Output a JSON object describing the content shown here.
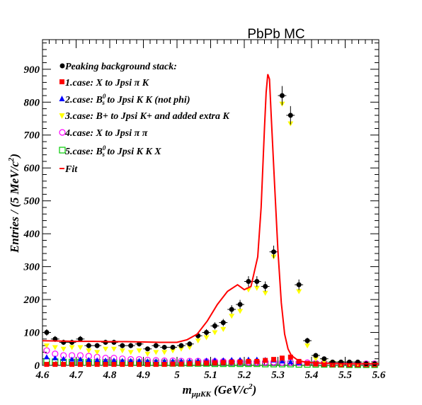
{
  "chart_data": {
    "type": "scatter",
    "title": "PbPb MC",
    "xlabel": "m_μμKK (GeV/c²)",
    "ylabel": "Entries / (5 MeV/c²)",
    "xlim": [
      4.6,
      5.6
    ],
    "ylim": [
      0,
      990
    ],
    "x_ticks": [
      "4.6",
      "4.7",
      "4.8",
      "4.9",
      "5",
      "5.1",
      "5.2",
      "5.3",
      "5.4",
      "5.5",
      "5.6"
    ],
    "y_ticks": [
      "0",
      "100",
      "200",
      "300",
      "400",
      "500",
      "600",
      "700",
      "800",
      "900"
    ],
    "x_tick_values": [
      4.6,
      4.7,
      4.8,
      4.9,
      5.0,
      5.1,
      5.2,
      5.3,
      5.4,
      5.5,
      5.6
    ],
    "y_tick_values": [
      0,
      100,
      200,
      300,
      400,
      500,
      600,
      700,
      800,
      900
    ],
    "grid": false,
    "legend_position": "top-left",
    "series": [
      {
        "name": "Peaking background stack:",
        "marker": "filled-circle",
        "color": "#000000",
        "x": [
          4.6125,
          4.6375,
          4.6625,
          4.6875,
          4.7125,
          4.7375,
          4.7625,
          4.7875,
          4.8125,
          4.8375,
          4.8625,
          4.8875,
          4.9125,
          4.9375,
          4.9625,
          4.9875,
          5.0125,
          5.0375,
          5.0625,
          5.0875,
          5.1125,
          5.1375,
          5.1625,
          5.1875,
          5.2125,
          5.2375,
          5.2625,
          5.2875,
          5.3125,
          5.3375,
          5.3625,
          5.3875,
          5.4125,
          5.4375,
          5.4625,
          5.4875,
          5.5125,
          5.5375,
          5.5625,
          5.5875
        ],
        "y": [
          100,
          80,
          70,
          70,
          80,
          60,
          60,
          70,
          70,
          60,
          60,
          65,
          50,
          60,
          55,
          55,
          60,
          65,
          90,
          100,
          120,
          130,
          170,
          185,
          255,
          255,
          240,
          345,
          820,
          760,
          245,
          75,
          30,
          20,
          10,
          10,
          10,
          10,
          5,
          5
        ],
        "err": [
          10,
          9,
          8,
          8,
          9,
          8,
          8,
          8,
          8,
          8,
          8,
          8,
          7,
          8,
          7,
          7,
          8,
          8,
          9,
          10,
          11,
          11,
          13,
          14,
          16,
          16,
          15,
          19,
          29,
          28,
          16,
          9,
          5,
          4,
          3,
          3,
          3,
          3,
          2,
          2
        ]
      },
      {
        "name": "1.case: X to Jpsi  π K",
        "marker": "filled-square",
        "color": "#ff0000",
        "x": [
          4.6125,
          4.6375,
          4.6625,
          4.6875,
          4.7125,
          4.7375,
          4.7625,
          4.7875,
          4.8125,
          4.8375,
          4.8625,
          4.8875,
          4.9125,
          4.9375,
          4.9625,
          4.9875,
          5.0125,
          5.0375,
          5.0625,
          5.0875,
          5.1125,
          5.1375,
          5.1625,
          5.1875,
          5.2125,
          5.2375,
          5.2625,
          5.2875,
          5.3125,
          5.3375,
          5.3625,
          5.3875,
          5.4125,
          5.4375,
          5.4625,
          5.4875,
          5.5125,
          5.5375,
          5.5625,
          5.5875
        ],
        "y": [
          3,
          3,
          3,
          3,
          3,
          3,
          3,
          3,
          3,
          3,
          3,
          3,
          3,
          3,
          3,
          4,
          4,
          5,
          6,
          7,
          8,
          9,
          10,
          10,
          12,
          12,
          15,
          18,
          22,
          25,
          12,
          6,
          4,
          3,
          2,
          2,
          2,
          2,
          2,
          2
        ]
      },
      {
        "name": "2.case: B_s^0 to Jpsi K K (not phi)",
        "marker": "filled-triangle-up",
        "color": "#0000ff",
        "x": [
          4.6125,
          4.6375,
          4.6625,
          4.6875,
          4.7125,
          4.7375,
          4.7625,
          4.7875,
          4.8125,
          4.8375,
          4.8625,
          4.8875,
          4.9125,
          4.9375,
          4.9625,
          4.9875,
          5.0125,
          5.0375,
          5.0625,
          5.0875,
          5.1125,
          5.1375,
          5.1625,
          5.1875,
          5.2125,
          5.2375,
          5.2625,
          5.2875,
          5.3125,
          5.3375,
          5.3625,
          5.3875,
          5.4125,
          5.4375,
          5.4625,
          5.4875,
          5.5125,
          5.5375,
          5.5625,
          5.5875
        ],
        "y": [
          25,
          22,
          20,
          18,
          18,
          17,
          16,
          15,
          15,
          14,
          14,
          14,
          13,
          13,
          13,
          13,
          13,
          13,
          14,
          15,
          16,
          16,
          17,
          17,
          18,
          18,
          17,
          15,
          12,
          10,
          8,
          6,
          5,
          4,
          4,
          3,
          3,
          3,
          3,
          3
        ]
      },
      {
        "name": "3.case: B+ to Jpsi K+ and added extra K",
        "marker": "filled-triangle-down",
        "color": "#ffff00",
        "x": [
          4.6125,
          4.6375,
          4.6625,
          4.6875,
          4.7125,
          4.7375,
          4.7625,
          4.7875,
          4.8125,
          4.8375,
          4.8625,
          4.8875,
          4.9125,
          4.9375,
          4.9625,
          4.9875,
          5.0125,
          5.0375,
          5.0625,
          5.0875,
          5.1125,
          5.1375,
          5.1625,
          5.1875,
          5.2125,
          5.2375,
          5.2625,
          5.2875,
          5.3125,
          5.3375,
          5.3625,
          5.3875,
          5.4125,
          5.4375,
          5.4625,
          5.4875,
          5.5125,
          5.5375,
          5.5625,
          5.5875
        ],
        "y": [
          60,
          55,
          50,
          55,
          55,
          45,
          40,
          50,
          50,
          45,
          40,
          45,
          35,
          40,
          40,
          45,
          50,
          55,
          75,
          85,
          100,
          110,
          150,
          165,
          230,
          235,
          220,
          330,
          795,
          735,
          225,
          60,
          20,
          12,
          8,
          6,
          6,
          5,
          4,
          4
        ]
      },
      {
        "name": "4.case: X to Jpsi  π  π",
        "marker": "open-circle",
        "color": "#ff00ff",
        "x": [
          4.6125,
          4.6375,
          4.6625,
          4.6875,
          4.7125,
          4.7375,
          4.7625,
          4.7875,
          4.8125,
          4.8375,
          4.8625,
          4.8875,
          4.9125,
          4.9375,
          4.9625,
          4.9875,
          5.0125,
          5.0375,
          5.0625,
          5.0875,
          5.1125,
          5.1375,
          5.1625,
          5.1875,
          5.2125,
          5.2375,
          5.2625,
          5.2875,
          5.3125,
          5.3375,
          5.3625,
          5.3875,
          5.4125,
          5.4375,
          5.4625,
          5.4875,
          5.5125,
          5.5375,
          5.5625,
          5.5875
        ],
        "y": [
          45,
          35,
          30,
          30,
          30,
          28,
          25,
          22,
          22,
          20,
          18,
          18,
          16,
          15,
          14,
          14,
          13,
          13,
          13,
          12,
          12,
          12,
          11,
          11,
          10,
          10,
          10,
          10,
          9,
          9,
          8,
          8,
          7,
          7,
          6,
          6,
          6,
          6,
          5,
          5
        ]
      },
      {
        "name": "5.case: B_s^0 to Jpsi K K X",
        "marker": "open-square",
        "color": "#00cc00",
        "x": [
          4.6125,
          4.6375,
          4.6625,
          4.6875,
          4.7125,
          4.7375,
          4.7625,
          4.7875,
          4.8125,
          4.8375,
          4.8625,
          4.8875,
          4.9125,
          4.9375,
          4.9625,
          4.9875,
          5.0125,
          5.0375,
          5.0625,
          5.0875,
          5.1125,
          5.1375,
          5.1625,
          5.1875,
          5.2125,
          5.2375,
          5.2625,
          5.2875,
          5.3125,
          5.3375,
          5.3625,
          5.3875,
          5.4125,
          5.4375,
          5.4625,
          5.4875,
          5.5125,
          5.5375,
          5.5625,
          5.5875
        ],
        "y": [
          12,
          11,
          10,
          10,
          10,
          9,
          9,
          9,
          8,
          8,
          8,
          8,
          7,
          7,
          7,
          6,
          6,
          6,
          6,
          6,
          5,
          5,
          5,
          5,
          5,
          5,
          4,
          4,
          4,
          4,
          3,
          3,
          3,
          3,
          3,
          3,
          2,
          2,
          2,
          2
        ]
      }
    ],
    "fit": {
      "name": "Fit",
      "color": "#ff0000",
      "x": [
        4.6,
        4.65,
        4.7,
        4.75,
        4.8,
        4.85,
        4.9,
        4.95,
        5.0,
        5.03,
        5.06,
        5.09,
        5.12,
        5.15,
        5.18,
        5.2,
        5.22,
        5.24,
        5.25,
        5.26,
        5.265,
        5.27,
        5.275,
        5.28,
        5.29,
        5.3,
        5.31,
        5.32,
        5.33,
        5.34,
        5.36,
        5.38,
        5.4,
        5.45,
        5.5,
        5.55,
        5.6
      ],
      "y": [
        75,
        74,
        73,
        73,
        72,
        72,
        71,
        70,
        70,
        78,
        95,
        135,
        185,
        225,
        245,
        230,
        240,
        330,
        480,
        720,
        830,
        885,
        870,
        760,
        550,
        350,
        190,
        95,
        50,
        30,
        15,
        10,
        8,
        6,
        5,
        5,
        5
      ]
    }
  }
}
